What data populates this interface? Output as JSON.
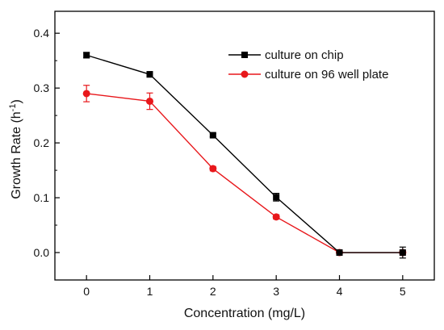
{
  "chart_data": {
    "type": "line",
    "title": "",
    "xlabel": "Concentration (mg/L)",
    "ylabel_main": "Growth Rate (h",
    "ylabel_sup": "-1",
    "ylabel_close": ")",
    "xlim": [
      -0.5,
      5.5
    ],
    "ylim": [
      -0.05,
      0.44
    ],
    "x_ticks": [
      0,
      1,
      2,
      3,
      4,
      5
    ],
    "x_tick_labels": [
      "0",
      "1",
      "2",
      "3",
      "4",
      "5"
    ],
    "y_ticks": [
      0.0,
      0.1,
      0.2,
      0.3,
      0.4
    ],
    "y_tick_labels": [
      "0.0",
      "0.1",
      "0.2",
      "0.3",
      "0.4"
    ],
    "grid": false,
    "legend_position": "top-right",
    "x": [
      0,
      1,
      2,
      3,
      4,
      5
    ],
    "series": [
      {
        "name": "culture on chip",
        "color": "#000000",
        "marker": "square",
        "values": [
          0.36,
          0.325,
          0.214,
          0.101,
          0.0,
          0.0
        ],
        "errors": [
          0.005,
          0.005,
          0.003,
          0.007,
          0.003,
          0.01
        ]
      },
      {
        "name": "culture on 96 well plate",
        "color": "#e8171b",
        "marker": "circle",
        "values": [
          0.29,
          0.276,
          0.153,
          0.065,
          0.0,
          0.0
        ],
        "errors": [
          0.015,
          0.015,
          0.004,
          0.004,
          0.003,
          0.003
        ]
      }
    ]
  }
}
